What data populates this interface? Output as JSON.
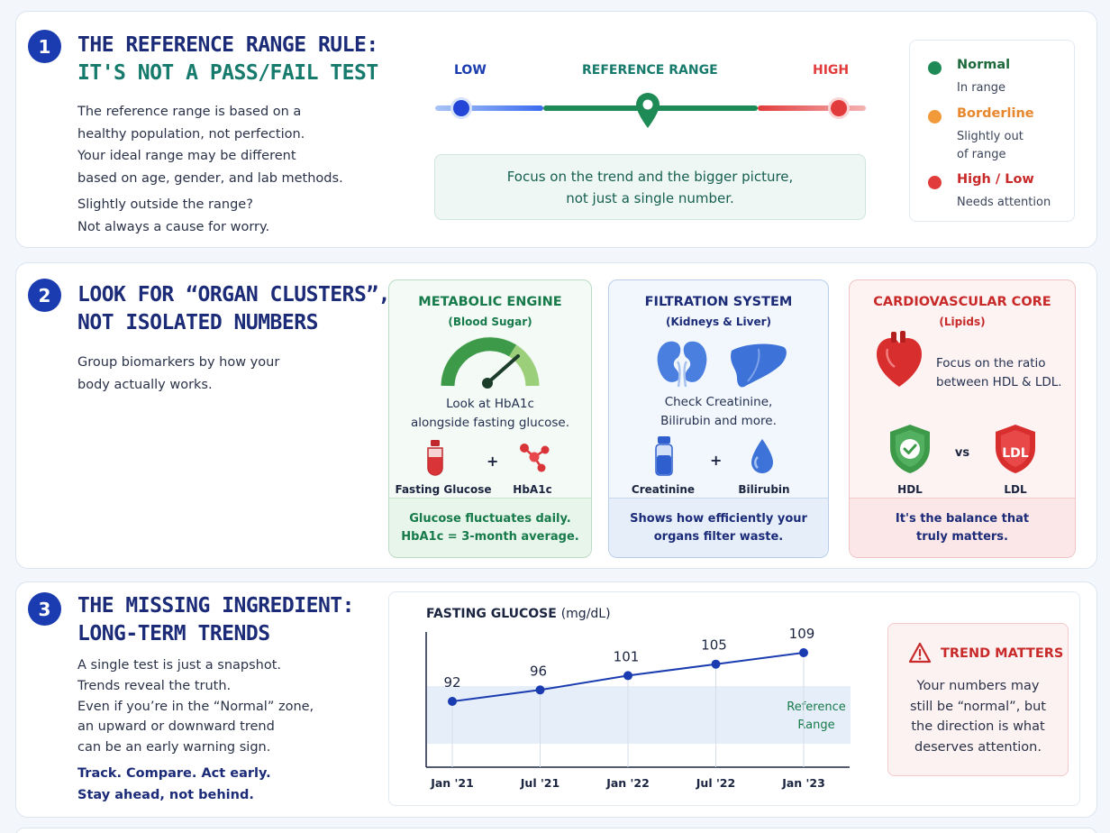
{
  "section1": {
    "number": "1",
    "title_line1": "THE REFERENCE RANGE RULE:",
    "title_line2": "IT'S NOT A PASS/FAIL TEST",
    "para1": [
      "The reference range is based on a",
      "healthy population, not perfection.",
      "Your ideal range may be different",
      "based on age, gender, and lab methods."
    ],
    "para2": [
      "Slightly outside the range?",
      "Not always a cause for worry."
    ],
    "scale": {
      "low": "LOW",
      "ref": "REFERENCE RANGE",
      "high": "HIGH"
    },
    "focus": [
      "Focus on the trend and the bigger picture,",
      "not just a single number."
    ],
    "legend": [
      {
        "title": "Normal",
        "sub": [
          "In range"
        ],
        "color": "#1e8a55"
      },
      {
        "title": "Borderline",
        "sub": [
          "Slightly out",
          "of range"
        ],
        "color": "#f2993a"
      },
      {
        "title": "High / Low",
        "sub": [
          "Needs attention"
        ],
        "color": "#e23b3b"
      }
    ],
    "colors": {
      "low": "#2b55e0",
      "ref": "#1e8a55",
      "high": "#e23b3b",
      "borderline": "#f2993a"
    }
  },
  "section2": {
    "number": "2",
    "title_line1": "LOOK FOR “ORGAN CLUSTERS”,",
    "title_line2": "NOT ISOLATED NUMBERS",
    "para": [
      "Group biomarkers by how your",
      "body actually works."
    ],
    "cards": [
      {
        "title": "METABOLIC ENGINE",
        "sub": "(Blood Sugar)",
        "desc": [
          "Look at HbA1c",
          "alongside fasting glucose."
        ],
        "item1": "Fasting Glucose",
        "plus": "+",
        "item2": "HbA1c",
        "foot": [
          "Glucose fluctuates daily.",
          "HbA1c = 3-month average."
        ],
        "icons": [
          "gauge-icon",
          "blood-tube-icon",
          "molecule-icon"
        ]
      },
      {
        "title": "FILTRATION SYSTEM",
        "sub": "(Kidneys & Liver)",
        "desc": [
          "Check Creatinine,",
          "Bilirubin and more."
        ],
        "item1": "Creatinine",
        "plus": "+",
        "item2": "Bilirubin",
        "foot": [
          "Shows how efficiently your",
          "organs filter waste."
        ],
        "icons": [
          "kidneys-icon",
          "liver-icon",
          "vial-icon",
          "droplet-icon"
        ]
      },
      {
        "title": "CARDIOVASCULAR CORE",
        "sub": "(Lipids)",
        "desc": [
          "Focus on the ratio",
          "between HDL & LDL."
        ],
        "item1": "HDL",
        "vs": "vs",
        "item2": "LDL",
        "badge": "LDL",
        "foot": [
          "It's the balance that",
          "truly matters."
        ],
        "icons": [
          "heart-icon",
          "shield-check-icon",
          "shield-ldl-icon"
        ]
      }
    ]
  },
  "section3": {
    "number": "3",
    "title_line1": "THE MISSING INGREDIENT:",
    "title_line2": "LONG-TERM TRENDS",
    "para": [
      "A single test is just a snapshot.",
      "Trends reveal the truth.",
      "Even if you’re in the “Normal” zone,",
      "an upward or downward trend",
      "can be an early warning sign."
    ],
    "bold": [
      "Track. Compare. Act early.",
      "Stay ahead, not behind."
    ],
    "trend": {
      "title": "TREND MATTERS",
      "text": [
        "Your numbers may",
        "still be “normal”, but",
        "the direction is what",
        "deserves attention."
      ]
    }
  },
  "chart_data": {
    "type": "line",
    "title": "FASTING GLUCOSE",
    "unit": "(mg/dL)",
    "categories": [
      "Jan '21",
      "Jul '21",
      "Jan '22",
      "Jul '22",
      "Jan '23"
    ],
    "values": [
      92,
      96,
      101,
      105,
      109
    ],
    "reference_band_label": [
      "Reference",
      "Range"
    ],
    "grid": true,
    "line_color": "#1a3cb0"
  }
}
